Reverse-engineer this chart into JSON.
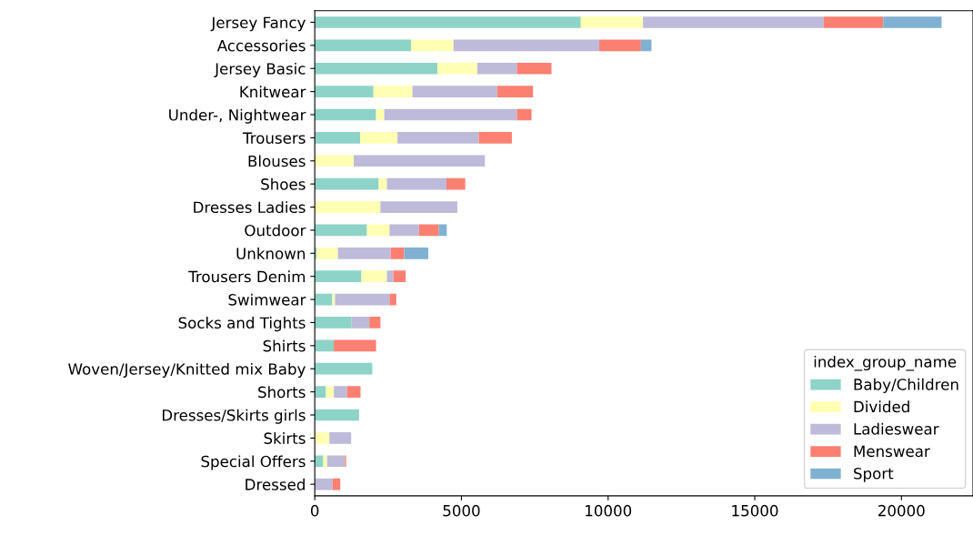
{
  "chart_data": {
    "type": "bar",
    "orientation": "horizontal",
    "stacked": true,
    "legend": "bottom right",
    "legend_title": "index_group_name",
    "grid": false,
    "categories": [
      "Jersey Fancy",
      "Accessories",
      "Jersey Basic",
      "Knitwear",
      "Under-, Nightwear",
      "Trousers",
      "Blouses",
      "Shoes",
      "Dresses Ladies",
      "Outdoor",
      "Unknown",
      "Trousers Denim",
      "Swimwear",
      "Socks and Tights",
      "Shirts",
      "Woven/Jersey/Knitted mix Baby",
      "Shorts",
      "Dresses/Skirts girls",
      "Skirts",
      "Special Offers",
      "Dressed"
    ],
    "xlim": [
      0,
      22440
    ],
    "xticks": [
      0,
      5000,
      10000,
      15000,
      20000
    ],
    "series": [
      {
        "name": "Baby/Children",
        "color": "#8dd3c7",
        "values": [
          9070,
          3280,
          4180,
          2000,
          2090,
          1550,
          0,
          2180,
          0,
          1780,
          60,
          1590,
          600,
          1250,
          650,
          1960,
          380,
          1510,
          0,
          290,
          0
        ]
      },
      {
        "name": "Divided",
        "color": "#ffffb3",
        "values": [
          2120,
          1450,
          1360,
          1330,
          280,
          1270,
          1330,
          280,
          2240,
          770,
          730,
          870,
          90,
          0,
          0,
          0,
          270,
          0,
          500,
          130,
          0
        ]
      },
      {
        "name": "Ladieswear",
        "color": "#bebada",
        "values": [
          6160,
          4970,
          1350,
          2890,
          4520,
          2770,
          4470,
          2030,
          2620,
          1000,
          1800,
          220,
          1860,
          610,
          0,
          0,
          450,
          0,
          740,
          610,
          600
        ]
      },
      {
        "name": "Menswear",
        "color": "#fb8072",
        "values": [
          2030,
          1420,
          1180,
          1220,
          500,
          1130,
          0,
          640,
          0,
          680,
          460,
          420,
          230,
          380,
          1440,
          0,
          460,
          0,
          0,
          40,
          270
        ]
      },
      {
        "name": "Sport",
        "color": "#80b1d3",
        "values": [
          1990,
          360,
          0,
          0,
          0,
          0,
          0,
          0,
          0,
          270,
          820,
          0,
          0,
          0,
          0,
          0,
          0,
          0,
          0,
          0,
          0
        ]
      }
    ]
  }
}
